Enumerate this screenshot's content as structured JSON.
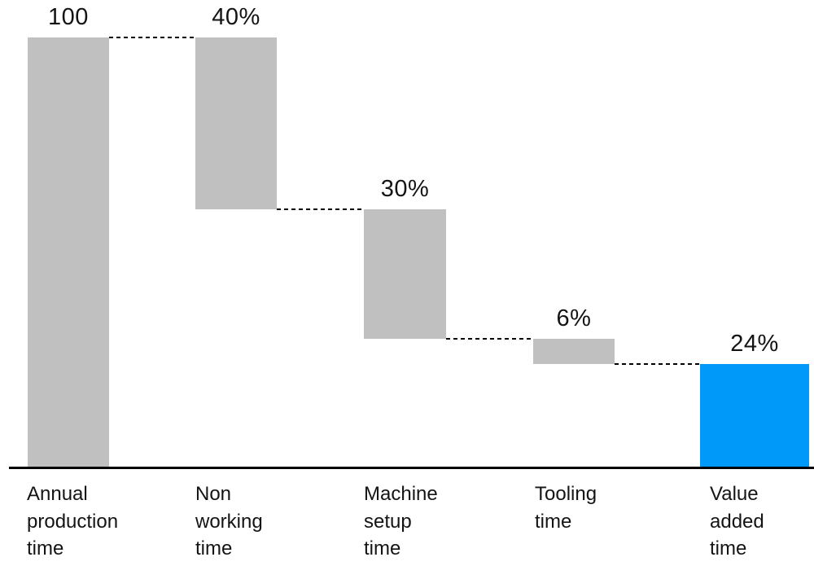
{
  "chart_data": {
    "type": "waterfall",
    "title": "",
    "xlabel": "",
    "ylabel": "",
    "ylim": [
      0,
      100
    ],
    "grid": false,
    "legend": false,
    "categories": [
      "Annual production time",
      "Non working time",
      "Machine setup time",
      "Tooling time",
      "Value added time"
    ],
    "values": [
      100,
      40,
      30,
      6,
      24
    ],
    "bars": [
      {
        "label_lines": [
          "Annual",
          "production",
          "time"
        ],
        "value_label": "100",
        "start": 100,
        "end": 0,
        "color_key": "gray"
      },
      {
        "label_lines": [
          "Non",
          "working",
          "time"
        ],
        "value_label": "40%",
        "start": 100,
        "end": 60,
        "color_key": "gray"
      },
      {
        "label_lines": [
          "Machine",
          "setup",
          "time"
        ],
        "value_label": "30%",
        "start": 60,
        "end": 30,
        "color_key": "gray"
      },
      {
        "label_lines": [
          "Tooling",
          "time"
        ],
        "value_label": "6%",
        "start": 30,
        "end": 24,
        "color_key": "gray"
      },
      {
        "label_lines": [
          "Value",
          "added",
          "time"
        ],
        "value_label": "24%",
        "start": 24,
        "end": 0,
        "color_key": "blue"
      }
    ],
    "colors": {
      "gray": "#c0c0c0",
      "blue": "#0099fa",
      "axis": "#000000",
      "text": "#141414",
      "connector": "#000000"
    }
  }
}
